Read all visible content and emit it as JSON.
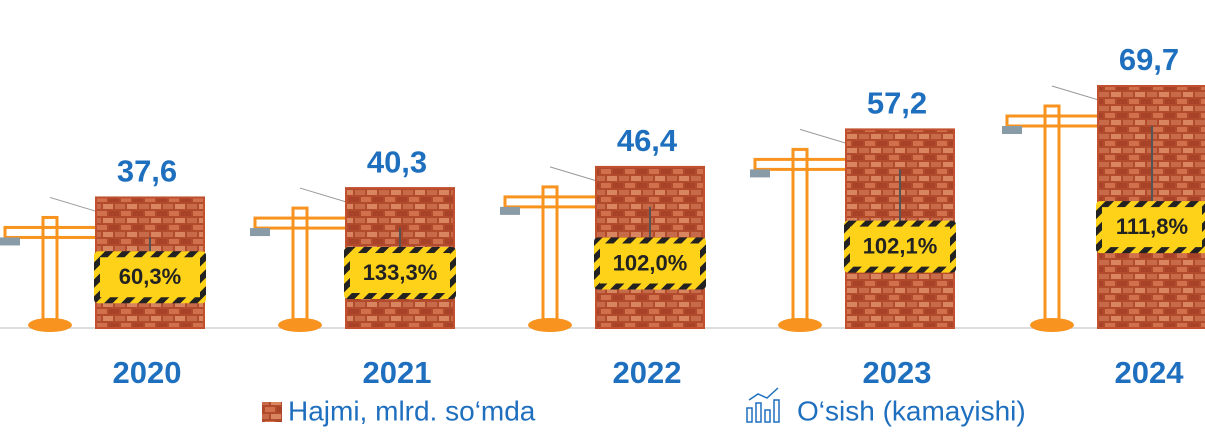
{
  "chart_data": {
    "type": "bar",
    "categories": [
      "2020",
      "2021",
      "2022",
      "2023",
      "2024"
    ],
    "series": [
      {
        "name": "Hajmi, mlrd. so‘mda",
        "color": "#c0502e",
        "values": [
          37.6,
          40.3,
          46.4,
          57.2,
          69.7
        ],
        "value_labels": [
          "37,6",
          "40,3",
          "46,4",
          "57,2",
          "69,7"
        ]
      },
      {
        "name": "O‘sish (kamayishi)",
        "color": "#ffd21a",
        "values": [
          60.3,
          133.3,
          102.0,
          102.1,
          111.8
        ],
        "value_labels": [
          "60,3%",
          "133,3%",
          "102,0%",
          "102,1%",
          "111,8%"
        ]
      }
    ]
  }
}
